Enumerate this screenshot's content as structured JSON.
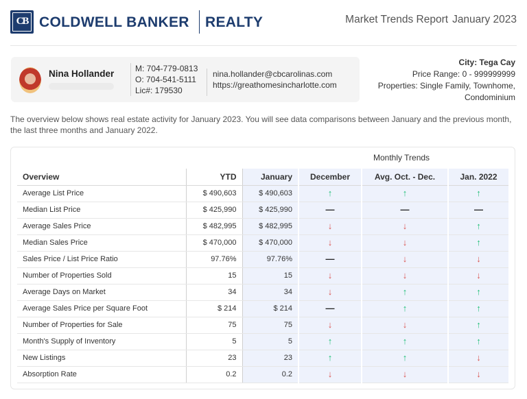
{
  "header": {
    "logo_letters": "CB",
    "brand_name": "COLDWELL BANKER",
    "brand_sub": "REALTY",
    "report_title": "Market Trends Report",
    "report_period": "January 2023"
  },
  "agent": {
    "name": "Nina Hollander",
    "mobile": "M: 704-779-0813",
    "office": "O: 704-541-5111",
    "license": "Lic#: 179530",
    "email": "nina.hollander@cbcarolinas.com",
    "website": "https://greathomesincharlotte.com"
  },
  "filters": {
    "city": "City: Tega Cay",
    "price_range": "Price Range: 0 - 999999999",
    "properties_line1": "Properties: Single Family, Townhome,",
    "properties_line2": "Condominium"
  },
  "intro": "The overview below shows real estate activity for January 2023. You will see data comparisons between January and the previous month, the last three months and January 2022.",
  "table": {
    "group_label": "Monthly Trends",
    "columns": [
      "Overview",
      "YTD",
      "January",
      "December",
      "Avg. Oct. - Dec.",
      "Jan. 2022"
    ],
    "rows": [
      {
        "label": "Average List Price",
        "ytd": "$ 490,603",
        "jan": "$ 490,603",
        "t": [
          "up",
          "up",
          "up"
        ]
      },
      {
        "label": "Median List Price",
        "ytd": "$ 425,990",
        "jan": "$ 425,990",
        "t": [
          "flat",
          "flat",
          "flat"
        ]
      },
      {
        "label": "Average Sales Price",
        "ytd": "$ 482,995",
        "jan": "$ 482,995",
        "t": [
          "down",
          "down",
          "up"
        ]
      },
      {
        "label": "Median Sales Price",
        "ytd": "$ 470,000",
        "jan": "$ 470,000",
        "t": [
          "down",
          "down",
          "up"
        ]
      },
      {
        "label": "Sales Price / List Price Ratio",
        "ytd": "97.76%",
        "jan": "97.76%",
        "t": [
          "flat",
          "down",
          "down"
        ]
      },
      {
        "label": "Number of Properties Sold",
        "ytd": "15",
        "jan": "15",
        "t": [
          "down",
          "down",
          "down"
        ]
      },
      {
        "label": "Average Days on Market",
        "ytd": "34",
        "jan": "34",
        "t": [
          "down",
          "up",
          "up"
        ]
      },
      {
        "label": "Average Sales Price per Square Foot",
        "ytd": "$ 214",
        "jan": "$ 214",
        "t": [
          "flat",
          "up",
          "up"
        ]
      },
      {
        "label": "Number of Properties for Sale",
        "ytd": "75",
        "jan": "75",
        "t": [
          "down",
          "down",
          "up"
        ]
      },
      {
        "label": "Month's Supply of Inventory",
        "ytd": "5",
        "jan": "5",
        "t": [
          "up",
          "up",
          "up"
        ]
      },
      {
        "label": "New Listings",
        "ytd": "23",
        "jan": "23",
        "t": [
          "up",
          "up",
          "down"
        ]
      },
      {
        "label": "Absorption Rate",
        "ytd": "0.2",
        "jan": "0.2",
        "t": [
          "down",
          "down",
          "down"
        ]
      }
    ]
  },
  "colors": {
    "brand": "#1d3c6e",
    "up": "#1fbf75",
    "down": "#d9534f",
    "highlight": "#eef2fc"
  },
  "icons": {
    "up": "arrow-up-icon",
    "down": "arrow-down-icon",
    "flat": "dash-icon"
  }
}
